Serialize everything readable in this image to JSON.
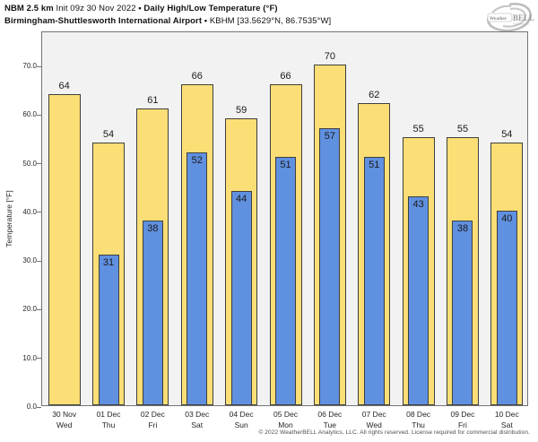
{
  "header": {
    "model": "NBM 2.5 km",
    "init": "Init 09z 30 Nov 2022",
    "separator": "•",
    "product": "Daily High/Low Temperature (°F)",
    "station": "Birmingham-Shuttlesworth International Airport",
    "station_id": "KBHM [33.5629°N, 86.7535°W]"
  },
  "logo": {
    "brand_weather": "Weather",
    "brand_bell": "BELL",
    "brand_sub": "Analytics LLC"
  },
  "chart_data": {
    "type": "bar",
    "title": "Daily High/Low Temperature (°F)",
    "xlabel": "",
    "ylabel": "Temperature [°F]",
    "ylim": [
      0,
      77
    ],
    "yticks": [
      0,
      10,
      20,
      30,
      40,
      50,
      60,
      70
    ],
    "ytick_labels": [
      "0.0",
      "10.0",
      "20.0",
      "30.0",
      "40.0",
      "50.0",
      "60.0",
      "70.0"
    ],
    "grid": false,
    "legend_position": "none",
    "bar_style": "overlaid (narrow Low bar drawn on top of wide High bar)",
    "categories": [
      {
        "date": "30 Nov",
        "day": "Wed"
      },
      {
        "date": "01 Dec",
        "day": "Thu"
      },
      {
        "date": "02 Dec",
        "day": "Fri"
      },
      {
        "date": "03 Dec",
        "day": "Sat"
      },
      {
        "date": "04 Dec",
        "day": "Sun"
      },
      {
        "date": "05 Dec",
        "day": "Mon"
      },
      {
        "date": "06 Dec",
        "day": "Tue"
      },
      {
        "date": "07 Dec",
        "day": "Wed"
      },
      {
        "date": "08 Dec",
        "day": "Thu"
      },
      {
        "date": "09 Dec",
        "day": "Fri"
      },
      {
        "date": "10 Dec",
        "day": "Sat"
      }
    ],
    "series": [
      {
        "name": "High",
        "color": "#FBDF76",
        "values": [
          64,
          54,
          61,
          66,
          59,
          66,
          70,
          62,
          55,
          55,
          54
        ]
      },
      {
        "name": "Low",
        "color": "#6090E0",
        "values": [
          null,
          31,
          38,
          52,
          44,
          51,
          57,
          51,
          43,
          38,
          40
        ]
      }
    ]
  },
  "footer": {
    "copyright": "© 2022 WeatherBELL Analytics, LLC. All rights reserved. License required for commercial distribution."
  },
  "colors": {
    "high_bar": "#FBDF76",
    "low_bar": "#6090E0",
    "bar_border": "#3F3F3F",
    "plot_bg": "#F2F2F2",
    "frame_border": "#737373",
    "page_bg": "#FFFFFF",
    "text": "#1A1A1A",
    "footer_text": "#4D4D4D"
  }
}
